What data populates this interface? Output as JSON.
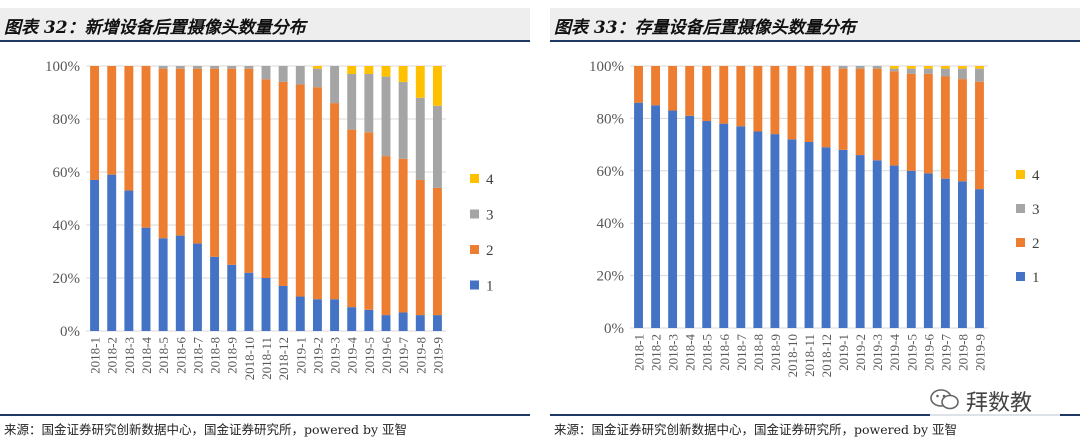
{
  "chart_data": [
    {
      "type": "bar",
      "stacked": true,
      "title": "图表 32：新增设备后置摄像头数量分布",
      "categories": [
        "2018-1",
        "2018-2",
        "2018-3",
        "2018-4",
        "2018-5",
        "2018-6",
        "2018-7",
        "2018-8",
        "2018-9",
        "2018-10",
        "2018-11",
        "2018-12",
        "2019-1",
        "2019-2",
        "2019-3",
        "2019-4",
        "2019-5",
        "2019-6",
        "2019-7",
        "2019-8",
        "2019-9"
      ],
      "series": [
        {
          "name": "1",
          "color": "#4472c4",
          "values": [
            57,
            59,
            53,
            39,
            35,
            36,
            33,
            28,
            25,
            22,
            20,
            17,
            13,
            12,
            12,
            9,
            8,
            6,
            7,
            6,
            6
          ]
        },
        {
          "name": "2",
          "color": "#ed7d31",
          "values": [
            43,
            41,
            47,
            61,
            64,
            63,
            66,
            71,
            74,
            77,
            75,
            77,
            80,
            80,
            74,
            67,
            67,
            60,
            58,
            51,
            48
          ]
        },
        {
          "name": "3",
          "color": "#a5a5a5",
          "values": [
            0,
            0,
            0,
            0,
            1,
            1,
            1,
            1,
            1,
            1,
            5,
            6,
            7,
            7,
            14,
            21,
            22,
            30,
            29,
            31,
            31
          ]
        },
        {
          "name": "4",
          "color": "#ffc000",
          "values": [
            0,
            0,
            0,
            0,
            0,
            0,
            0,
            0,
            0,
            0,
            0,
            0,
            0,
            1,
            0,
            3,
            3,
            4,
            6,
            12,
            15
          ]
        }
      ],
      "yticks": [
        "100%",
        "80%",
        "60%",
        "40%",
        "20%",
        "0%"
      ],
      "ylim": [
        0,
        100
      ],
      "grid": true,
      "legend": "right",
      "source": "来源：国金证券研究创新数据中心，国金证券研究所，powered by 亚智"
    },
    {
      "type": "bar",
      "stacked": true,
      "title": "图表 33：存量设备后置摄像头数量分布",
      "categories": [
        "2018-1",
        "2018-2",
        "2018-3",
        "2018-4",
        "2018-5",
        "2018-6",
        "2018-7",
        "2018-8",
        "2018-9",
        "2018-10",
        "2018-11",
        "2018-12",
        "2019-1",
        "2019-2",
        "2019-3",
        "2019-4",
        "2019-5",
        "2019-6",
        "2019-7",
        "2019-8",
        "2019-9"
      ],
      "series": [
        {
          "name": "1",
          "color": "#4472c4",
          "values": [
            86,
            85,
            83,
            81,
            79,
            78,
            77,
            75,
            74,
            72,
            71,
            69,
            68,
            66,
            64,
            62,
            60,
            59,
            57,
            56,
            53
          ]
        },
        {
          "name": "2",
          "color": "#ed7d31",
          "values": [
            14,
            15,
            17,
            19,
            21,
            22,
            23,
            25,
            26,
            28,
            29,
            31,
            31,
            33,
            35,
            36,
            37,
            38,
            39,
            39,
            41
          ]
        },
        {
          "name": "3",
          "color": "#a5a5a5",
          "values": [
            0,
            0,
            0,
            0,
            0,
            0,
            0,
            0,
            0,
            0,
            0,
            0,
            1,
            1,
            1,
            1,
            2,
            2,
            3,
            4,
            5
          ]
        },
        {
          "name": "4",
          "color": "#ffc000",
          "values": [
            0,
            0,
            0,
            0,
            0,
            0,
            0,
            0,
            0,
            0,
            0,
            0,
            0,
            0,
            0,
            1,
            1,
            1,
            1,
            1,
            1
          ]
        }
      ],
      "yticks": [
        "100%",
        "80%",
        "60%",
        "40%",
        "20%",
        "0%"
      ],
      "ylim": [
        0,
        100
      ],
      "grid": true,
      "legend": "right",
      "source": "来源：国金证券研究创新数据中心，国金证券研究所，powered by 亚智"
    }
  ],
  "watermark": {
    "text": "拜数教",
    "icon": "wechat-icon"
  }
}
